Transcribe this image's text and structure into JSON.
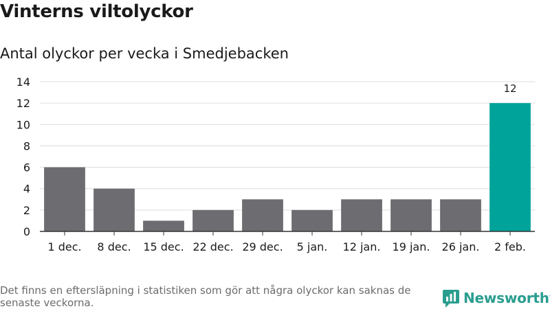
{
  "title": "Vinterns viltolyckor",
  "subtitle": "Antal olyckor per vecka i Smedjebacken",
  "footnote": "Det finns en eftersläpning i statistiken som gör att några olyckor kan saknas de senaste veckorna.",
  "brand": {
    "name": "Newsworthy",
    "icon": "newsworthy-logo-icon",
    "color": "#2a9d8f"
  },
  "chart_data": {
    "type": "bar",
    "categories": [
      "1 dec.",
      "8 dec.",
      "15 dec.",
      "22 dec.",
      "29 dec.",
      "5 jan.",
      "12 jan.",
      "19 jan.",
      "26 jan.",
      "2 feb."
    ],
    "values": [
      6,
      4,
      1,
      2,
      3,
      2,
      3,
      3,
      3,
      12
    ],
    "ylim": [
      0,
      14
    ],
    "yticks": [
      0,
      2,
      4,
      6,
      8,
      10,
      12,
      14
    ],
    "ytick_labels": [
      "0",
      "2",
      "4",
      "6",
      "8",
      "10",
      "12",
      "14"
    ],
    "grid": true,
    "colors": {
      "default": "#6d6c70",
      "highlight": "#00a39a"
    },
    "highlight_index": 9,
    "data_labels": [
      {
        "index": 9,
        "text": "12"
      }
    ]
  }
}
